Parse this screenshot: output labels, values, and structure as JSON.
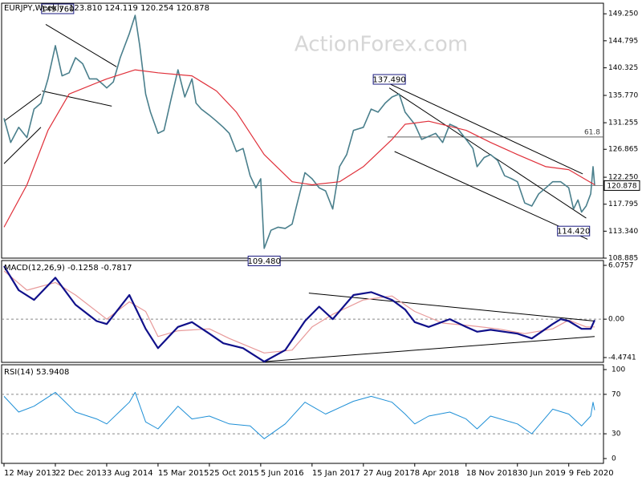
{
  "chart_data": {
    "type": "line",
    "watermark": "ActionForex.com",
    "colors": {
      "price": "#4a7f8c",
      "sma": "#e0303a",
      "macd": "#10108a",
      "signal": "#e89a9a",
      "rsi": "#1e8fd6",
      "trendline": "#000000",
      "current": "#808080",
      "fib": "#606060"
    },
    "price_panel": {
      "symbol": "EURJPY,Weekly",
      "ohlc_text": "123.810 124.119 120.254 120.878",
      "ylim": [
        108.885,
        151.0
      ],
      "ticks": [
        "149.250",
        "144.795",
        "140.325",
        "135.770",
        "131.255",
        "126.865",
        "122.250",
        "117.795",
        "113.340",
        "108.885"
      ],
      "current_value": "120.878",
      "fib_label": "61.8",
      "labels": [
        {
          "text": "149.760",
          "date": "2014-01-01",
          "value": 149.76
        },
        {
          "text": "137.490",
          "date": "2017-12-18",
          "value": 137.49
        },
        {
          "text": "109.480",
          "date": "2016-06-20",
          "value": 109.48
        },
        {
          "text": "114.420",
          "date": "2020-03-01",
          "value": 114.42
        }
      ],
      "price_series": [
        [
          "2013-05-12",
          132.0
        ],
        [
          "2013-06-10",
          128.0
        ],
        [
          "2013-07-15",
          130.5
        ],
        [
          "2013-08-20",
          128.8
        ],
        [
          "2013-09-20",
          133.5
        ],
        [
          "2013-10-20",
          134.5
        ],
        [
          "2013-11-20",
          138.5
        ],
        [
          "2013-12-22",
          144.0
        ],
        [
          "2014-01-20",
          139.0
        ],
        [
          "2014-02-20",
          139.5
        ],
        [
          "2014-03-20",
          142.0
        ],
        [
          "2014-04-20",
          141.0
        ],
        [
          "2014-05-20",
          138.5
        ],
        [
          "2014-06-20",
          138.5
        ],
        [
          "2014-07-20",
          137.5
        ],
        [
          "2014-08-03",
          137.0
        ],
        [
          "2014-09-01",
          138.0
        ],
        [
          "2014-10-01",
          142.0
        ],
        [
          "2014-11-10",
          146.0
        ],
        [
          "2014-12-05",
          149.0
        ],
        [
          "2014-12-25",
          144.0
        ],
        [
          "2015-01-20",
          136.0
        ],
        [
          "2015-02-10",
          133.0
        ],
        [
          "2015-03-15",
          129.5
        ],
        [
          "2015-04-10",
          130.0
        ],
        [
          "2015-05-10",
          135.0
        ],
        [
          "2015-06-10",
          140.0
        ],
        [
          "2015-07-10",
          135.5
        ],
        [
          "2015-08-10",
          138.5
        ],
        [
          "2015-08-28",
          134.5
        ],
        [
          "2015-09-20",
          133.5
        ],
        [
          "2015-10-25",
          132.5
        ],
        [
          "2015-11-25",
          131.5
        ],
        [
          "2015-12-25",
          130.5
        ],
        [
          "2016-01-20",
          129.5
        ],
        [
          "2016-02-20",
          126.5
        ],
        [
          "2016-03-20",
          127.0
        ],
        [
          "2016-04-20",
          122.5
        ],
        [
          "2016-05-15",
          120.5
        ],
        [
          "2016-06-05",
          122.0
        ],
        [
          "2016-06-20",
          110.5
        ],
        [
          "2016-07-20",
          113.5
        ],
        [
          "2016-08-20",
          114.0
        ],
        [
          "2016-09-20",
          113.8
        ],
        [
          "2016-10-20",
          114.5
        ],
        [
          "2016-11-15",
          118.5
        ],
        [
          "2016-12-15",
          123.0
        ],
        [
          "2017-01-15",
          122.0
        ],
        [
          "2017-02-15",
          120.5
        ],
        [
          "2017-03-15",
          120.0
        ],
        [
          "2017-04-15",
          117.0
        ],
        [
          "2017-05-15",
          124.0
        ],
        [
          "2017-06-15",
          126.0
        ],
        [
          "2017-07-15",
          130.0
        ],
        [
          "2017-08-27",
          130.5
        ],
        [
          "2017-09-30",
          133.5
        ],
        [
          "2017-10-30",
          133.0
        ],
        [
          "2017-11-30",
          134.5
        ],
        [
          "2017-12-30",
          135.5
        ],
        [
          "2018-01-30",
          136.0
        ],
        [
          "2018-02-25",
          133.0
        ],
        [
          "2018-04-08",
          131.0
        ],
        [
          "2018-05-08",
          128.5
        ],
        [
          "2018-06-08",
          129.0
        ],
        [
          "2018-07-08",
          129.5
        ],
        [
          "2018-08-08",
          128.0
        ],
        [
          "2018-09-08",
          131.0
        ],
        [
          "2018-10-08",
          130.5
        ],
        [
          "2018-11-18",
          128.5
        ],
        [
          "2018-12-18",
          127.0
        ],
        [
          "2019-01-05",
          124.0
        ],
        [
          "2019-02-05",
          125.5
        ],
        [
          "2019-03-05",
          126.0
        ],
        [
          "2019-04-05",
          125.0
        ],
        [
          "2019-05-05",
          122.5
        ],
        [
          "2019-06-05",
          122.0
        ],
        [
          "2019-06-30",
          121.5
        ],
        [
          "2019-08-01",
          118.0
        ],
        [
          "2019-09-01",
          117.5
        ],
        [
          "2019-10-01",
          119.5
        ],
        [
          "2019-11-01",
          120.5
        ],
        [
          "2019-12-01",
          121.5
        ],
        [
          "2020-01-05",
          121.5
        ],
        [
          "2020-02-09",
          120.5
        ],
        [
          "2020-03-01",
          117.0
        ],
        [
          "2020-03-20",
          118.5
        ],
        [
          "2020-04-05",
          116.5
        ],
        [
          "2020-04-25",
          117.5
        ],
        [
          "2020-05-15",
          119.5
        ],
        [
          "2020-05-25",
          124.0
        ],
        [
          "2020-06-01",
          120.9
        ]
      ],
      "sma_series": [
        [
          "2013-05-12",
          114.0
        ],
        [
          "2013-08-20",
          121.0
        ],
        [
          "2013-11-20",
          130.0
        ],
        [
          "2014-02-20",
          136.0
        ],
        [
          "2014-08-03",
          138.5
        ],
        [
          "2014-12-05",
          140.0
        ],
        [
          "2015-03-15",
          139.5
        ],
        [
          "2015-08-10",
          139.0
        ],
        [
          "2015-11-25",
          136.5
        ],
        [
          "2016-02-20",
          133.0
        ],
        [
          "2016-06-20",
          126.0
        ],
        [
          "2016-10-20",
          121.5
        ],
        [
          "2017-01-15",
          121.0
        ],
        [
          "2017-05-15",
          121.5
        ],
        [
          "2017-08-27",
          124.0
        ],
        [
          "2017-12-30",
          128.5
        ],
        [
          "2018-02-25",
          131.0
        ],
        [
          "2018-06-08",
          131.5
        ],
        [
          "2018-11-18",
          130.0
        ],
        [
          "2019-03-05",
          128.0
        ],
        [
          "2019-06-30",
          126.0
        ],
        [
          "2019-11-01",
          124.0
        ],
        [
          "2020-02-09",
          123.5
        ],
        [
          "2020-06-01",
          121.0
        ]
      ],
      "trendlines": [
        [
          [
            "2013-05-12",
            131.5
          ],
          [
            "2013-10-20",
            136.0
          ]
        ],
        [
          [
            "2013-05-12",
            124.5
          ],
          [
            "2013-10-20",
            130.5
          ]
        ],
        [
          [
            "2013-11-10",
            147.5
          ],
          [
            "2014-09-15",
            140.5
          ]
        ],
        [
          [
            "2013-10-25",
            136.5
          ],
          [
            "2014-08-25",
            134.0
          ]
        ],
        [
          [
            "2017-12-18",
            137.7
          ],
          [
            "2020-04-10",
            122.8
          ]
        ],
        [
          [
            "2017-12-18",
            137.0
          ],
          [
            "2020-04-25",
            115.5
          ]
        ],
        [
          [
            "2018-01-10",
            126.5
          ],
          [
            "2020-05-01",
            112.0
          ]
        ]
      ],
      "fib_value": 128.9,
      "fib_from": "2017-12-10"
    },
    "macd_panel": {
      "title": "MACD(12,26,9) -0.1258 -0.7817",
      "ylim": [
        -4.4741,
        6.0757
      ],
      "ticks": [
        "6.0757",
        "0.00",
        "-4.4741"
      ],
      "macd_series": [
        [
          "2013-05-12",
          5.5
        ],
        [
          "2013-07-15",
          3.0
        ],
        [
          "2013-09-20",
          2.0
        ],
        [
          "2013-12-22",
          4.3
        ],
        [
          "2014-03-20",
          1.5
        ],
        [
          "2014-06-20",
          -0.2
        ],
        [
          "2014-08-03",
          -0.5
        ],
        [
          "2014-11-10",
          2.5
        ],
        [
          "2015-01-20",
          -1.0
        ],
        [
          "2015-03-15",
          -3.0
        ],
        [
          "2015-06-10",
          -0.8
        ],
        [
          "2015-08-10",
          -0.3
        ],
        [
          "2015-10-25",
          -1.5
        ],
        [
          "2015-12-25",
          -2.5
        ],
        [
          "2016-03-20",
          -3.0
        ],
        [
          "2016-06-20",
          -4.4
        ],
        [
          "2016-09-20",
          -3.2
        ],
        [
          "2016-12-15",
          -0.2
        ],
        [
          "2017-02-15",
          1.3
        ],
        [
          "2017-04-15",
          0.0
        ],
        [
          "2017-07-15",
          2.5
        ],
        [
          "2017-09-30",
          2.8
        ],
        [
          "2017-12-30",
          2.0
        ],
        [
          "2018-02-25",
          1.0
        ],
        [
          "2018-04-08",
          -0.3
        ],
        [
          "2018-06-08",
          -0.8
        ],
        [
          "2018-09-08",
          0.0
        ],
        [
          "2018-11-18",
          -0.8
        ],
        [
          "2019-01-05",
          -1.3
        ],
        [
          "2019-03-05",
          -1.1
        ],
        [
          "2019-06-30",
          -1.5
        ],
        [
          "2019-09-01",
          -2.0
        ],
        [
          "2019-12-01",
          -0.5
        ],
        [
          "2020-01-05",
          0.0
        ],
        [
          "2020-02-09",
          -0.2
        ],
        [
          "2020-04-05",
          -1.0
        ],
        [
          "2020-05-15",
          -1.0
        ],
        [
          "2020-06-01",
          -0.1
        ]
      ],
      "signal_series": [
        [
          "2013-05-12",
          5.0
        ],
        [
          "2013-08-20",
          3.0
        ],
        [
          "2013-12-22",
          3.8
        ],
        [
          "2014-03-20",
          2.5
        ],
        [
          "2014-08-03",
          0.0
        ],
        [
          "2014-11-10",
          1.8
        ],
        [
          "2015-01-20",
          0.8
        ],
        [
          "2015-03-15",
          -1.8
        ],
        [
          "2015-06-10",
          -1.2
        ],
        [
          "2015-10-25",
          -1.0
        ],
        [
          "2016-01-20",
          -2.0
        ],
        [
          "2016-06-20",
          -3.5
        ],
        [
          "2016-10-20",
          -3.2
        ],
        [
          "2017-01-15",
          -0.8
        ],
        [
          "2017-04-15",
          0.5
        ],
        [
          "2017-08-27",
          2.0
        ],
        [
          "2017-12-30",
          2.4
        ],
        [
          "2018-04-08",
          0.8
        ],
        [
          "2018-08-08",
          -0.4
        ],
        [
          "2018-12-18",
          -0.7
        ],
        [
          "2019-04-05",
          -1.0
        ],
        [
          "2019-08-01",
          -1.5
        ],
        [
          "2019-12-01",
          -1.0
        ],
        [
          "2020-02-09",
          -0.1
        ],
        [
          "2020-04-25",
          -0.8
        ],
        [
          "2020-06-01",
          -0.8
        ]
      ],
      "trendlines": [
        [
          [
            "2017-01-01",
            2.7
          ],
          [
            "2020-06-01",
            -0.2
          ]
        ],
        [
          [
            "2016-06-20",
            -4.4
          ],
          [
            "2020-06-01",
            -1.8
          ]
        ]
      ]
    },
    "rsi_panel": {
      "title": "RSI(14) 53.9408",
      "ylim": [
        0,
        100
      ],
      "ticks": [
        "100",
        "70",
        "30",
        "0"
      ],
      "levels": [
        70,
        30
      ],
      "rsi_series": [
        [
          "2013-05-12",
          68
        ],
        [
          "2013-07-15",
          52
        ],
        [
          "2013-09-20",
          58
        ],
        [
          "2013-12-22",
          72
        ],
        [
          "2014-03-20",
          52
        ],
        [
          "2014-06-20",
          45
        ],
        [
          "2014-08-03",
          40
        ],
        [
          "2014-11-10",
          62
        ],
        [
          "2014-12-05",
          72
        ],
        [
          "2015-01-20",
          42
        ],
        [
          "2015-03-15",
          35
        ],
        [
          "2015-06-10",
          58
        ],
        [
          "2015-08-10",
          45
        ],
        [
          "2015-10-25",
          48
        ],
        [
          "2016-01-20",
          40
        ],
        [
          "2016-04-20",
          38
        ],
        [
          "2016-06-20",
          25
        ],
        [
          "2016-09-20",
          40
        ],
        [
          "2016-12-15",
          62
        ],
        [
          "2017-03-15",
          50
        ],
        [
          "2017-07-15",
          63
        ],
        [
          "2017-09-30",
          68
        ],
        [
          "2017-12-30",
          62
        ],
        [
          "2018-02-25",
          50
        ],
        [
          "2018-04-08",
          40
        ],
        [
          "2018-06-08",
          48
        ],
        [
          "2018-09-08",
          52
        ],
        [
          "2018-11-18",
          45
        ],
        [
          "2019-01-05",
          35
        ],
        [
          "2019-03-05",
          48
        ],
        [
          "2019-06-30",
          40
        ],
        [
          "2019-09-01",
          30
        ],
        [
          "2019-12-01",
          55
        ],
        [
          "2020-02-09",
          50
        ],
        [
          "2020-04-05",
          38
        ],
        [
          "2020-05-15",
          48
        ],
        [
          "2020-05-25",
          62
        ],
        [
          "2020-06-01",
          54
        ]
      ]
    },
    "x_axis": {
      "ticks": [
        {
          "label": "12 May 2013",
          "date": "2013-05-12"
        },
        {
          "label": "22 Dec 2013",
          "date": "2013-12-22"
        },
        {
          "label": "3 Aug 2014",
          "date": "2014-08-03"
        },
        {
          "label": "15 Mar 2015",
          "date": "2015-03-15"
        },
        {
          "label": "25 Oct 2015",
          "date": "2015-10-25"
        },
        {
          "label": "5 Jun 2016",
          "date": "2016-06-05"
        },
        {
          "label": "15 Jan 2017",
          "date": "2017-01-15"
        },
        {
          "label": "27 Aug 2017",
          "date": "2017-08-27"
        },
        {
          "label": "8 Apr 2018",
          "date": "2018-04-08"
        },
        {
          "label": "18 Nov 2018",
          "date": "2018-11-18"
        },
        {
          "label": "30 Jun 2019",
          "date": "2019-06-30"
        },
        {
          "label": "9 Feb 2020",
          "date": "2020-02-09"
        }
      ]
    }
  }
}
